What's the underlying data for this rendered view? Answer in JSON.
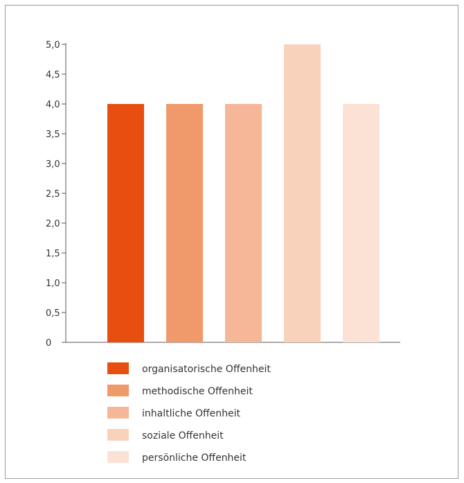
{
  "chart_data": {
    "type": "bar",
    "title": "",
    "xlabel": "",
    "ylabel": "",
    "ylim": [
      0,
      5
    ],
    "yticks": [
      "0",
      "0,5",
      "1,0",
      "1,5",
      "2,0",
      "2,5",
      "3,0",
      "3,5",
      "4,0",
      "4,5",
      "5,0"
    ],
    "ytick_values": [
      0,
      0.5,
      1.0,
      1.5,
      2.0,
      2.5,
      3.0,
      3.5,
      4.0,
      4.5,
      5.0
    ],
    "grid": false,
    "legend_position": "bottom",
    "categories": [
      "organisatorische Offenheit",
      "methodische Offenheit",
      "inhaltliche Offenheit",
      "soziale Offenheit",
      "persönliche Offenheit"
    ],
    "values": [
      4,
      4,
      4,
      5,
      4
    ],
    "colors": [
      "#e84e0f",
      "#f0996a",
      "#f5b797",
      "#f9d2bc",
      "#fce2d4"
    ]
  }
}
